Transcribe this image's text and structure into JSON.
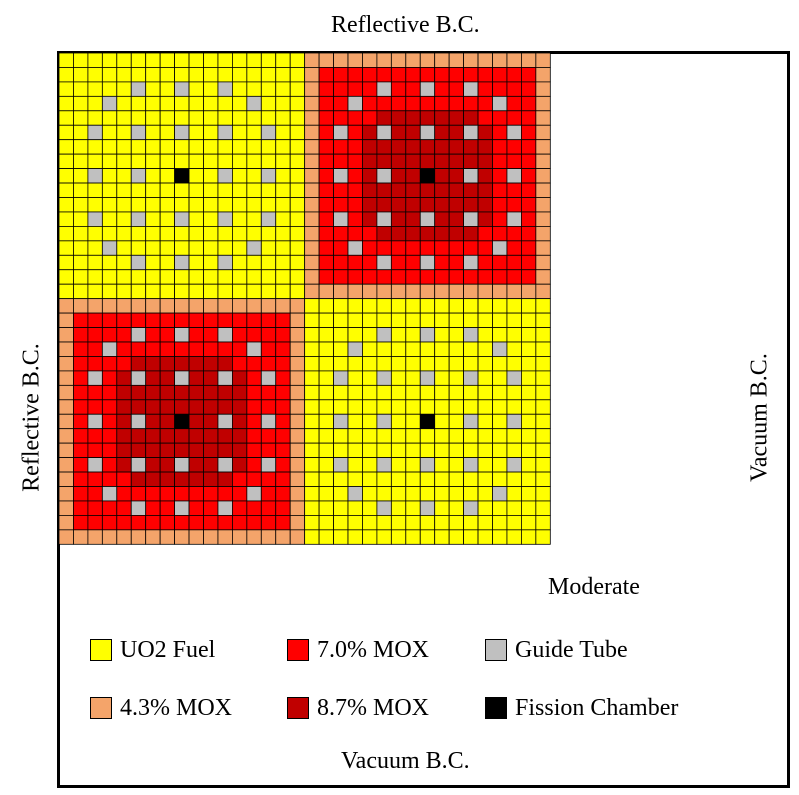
{
  "boundaries": {
    "top": "Reflective B.C.",
    "left": "Reflective B.C.",
    "right": "Vacuum B.C.",
    "bottom": "Vacuum B.C."
  },
  "moderator_label": "Moderate",
  "legend": [
    {
      "label": "UO2 Fuel",
      "color": "#ffff00"
    },
    {
      "label": "7.0% MOX",
      "color": "#ff0000"
    },
    {
      "label": "Guide Tube",
      "color": "#c0c0c0"
    },
    {
      "label": "4.3% MOX",
      "color": "#f4a46a"
    },
    {
      "label": "8.7% MOX",
      "color": "#c00000"
    },
    {
      "label": "Fission Chamber",
      "color": "#000000"
    }
  ],
  "colors": {
    "uo2": "#ffff00",
    "mox43": "#f4a46a",
    "mox70": "#ff0000",
    "mox87": "#c00000",
    "guide_tube": "#c0c0c0",
    "fission_chamber": "#000000",
    "moderator": "#ffffff",
    "grid_line": "#000000"
  },
  "assemblies": [
    {
      "row": 0,
      "col": 0,
      "type": "UO2"
    },
    {
      "row": 0,
      "col": 1,
      "type": "MOX"
    },
    {
      "row": 1,
      "col": 0,
      "type": "MOX"
    },
    {
      "row": 1,
      "col": 1,
      "type": "UO2"
    }
  ]
}
